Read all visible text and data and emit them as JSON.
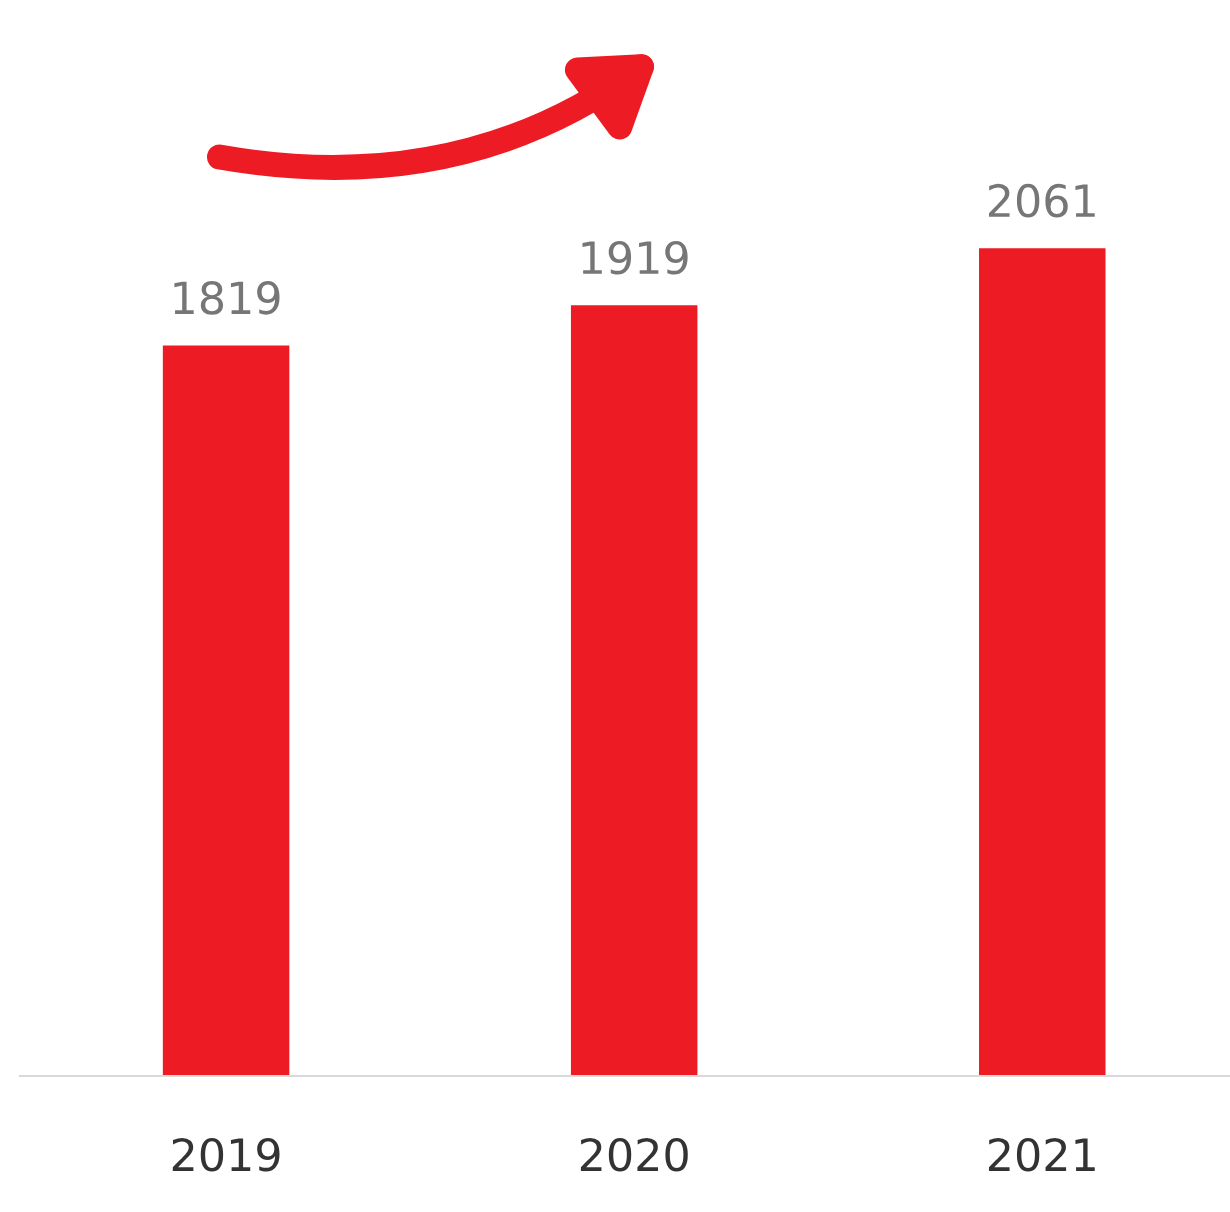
{
  "chart_data": {
    "type": "bar",
    "categories": [
      "2019",
      "2020",
      "2021"
    ],
    "values": [
      1819,
      1919,
      2061
    ],
    "color": "#ed1c24",
    "data_labels": true,
    "grid": false,
    "tick_labels": "x"
  }
}
